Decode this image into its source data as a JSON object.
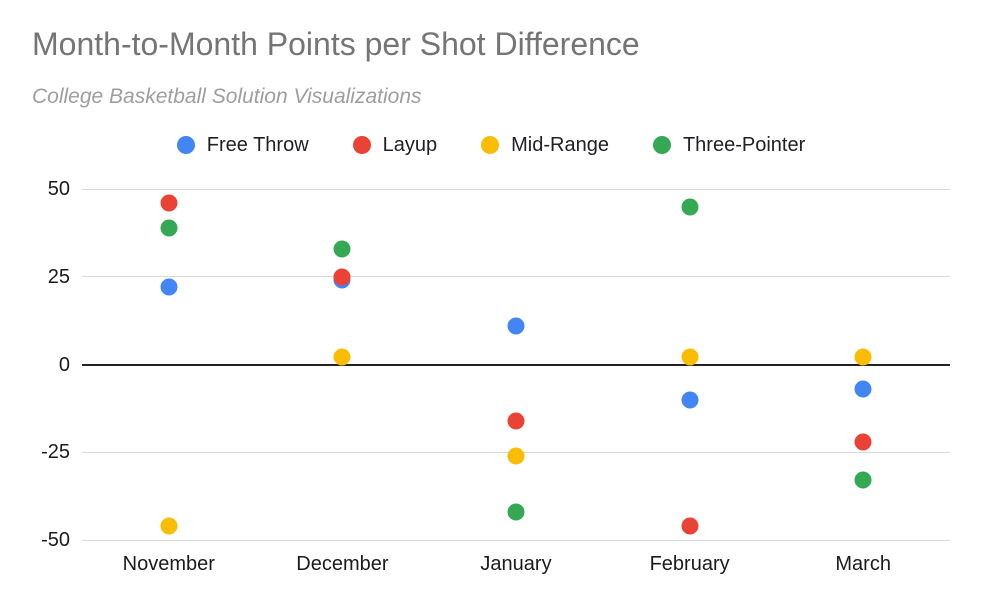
{
  "header": {
    "title": "Month-to-Month Points per Shot Difference",
    "subtitle": "College Basketball Solution Visualizations"
  },
  "colors": {
    "title_text": "#757575",
    "subtitle_text": "#9e9e9e",
    "axis_text": "#1b1b1b",
    "gridline": "#d9d9d9",
    "zero_line": "#212121",
    "background": "#ffffff"
  },
  "chart_data": {
    "type": "scatter",
    "title": "Month-to-Month Points per Shot Difference",
    "subtitle": "College Basketball Solution Visualizations",
    "categories": [
      "November",
      "December",
      "January",
      "February",
      "March"
    ],
    "series": [
      {
        "name": "Free Throw",
        "color": "#4285F4",
        "values": [
          22,
          24,
          11,
          -10,
          -7
        ]
      },
      {
        "name": "Layup",
        "color": "#EA4335",
        "values": [
          46,
          25,
          -16,
          -46,
          -22
        ]
      },
      {
        "name": "Mid-Range",
        "color": "#FBBC04",
        "values": [
          -46,
          2,
          -26,
          2,
          2
        ]
      },
      {
        "name": "Three-Pointer",
        "color": "#34A853",
        "values": [
          39,
          33,
          -42,
          45,
          -33
        ]
      }
    ],
    "yticks": [
      50,
      25,
      0,
      -25,
      -50
    ],
    "ylim": [
      -50,
      50
    ],
    "xlabel": "",
    "ylabel": "",
    "grid": true,
    "legend_position": "top",
    "zero_line_emphasized": true
  }
}
